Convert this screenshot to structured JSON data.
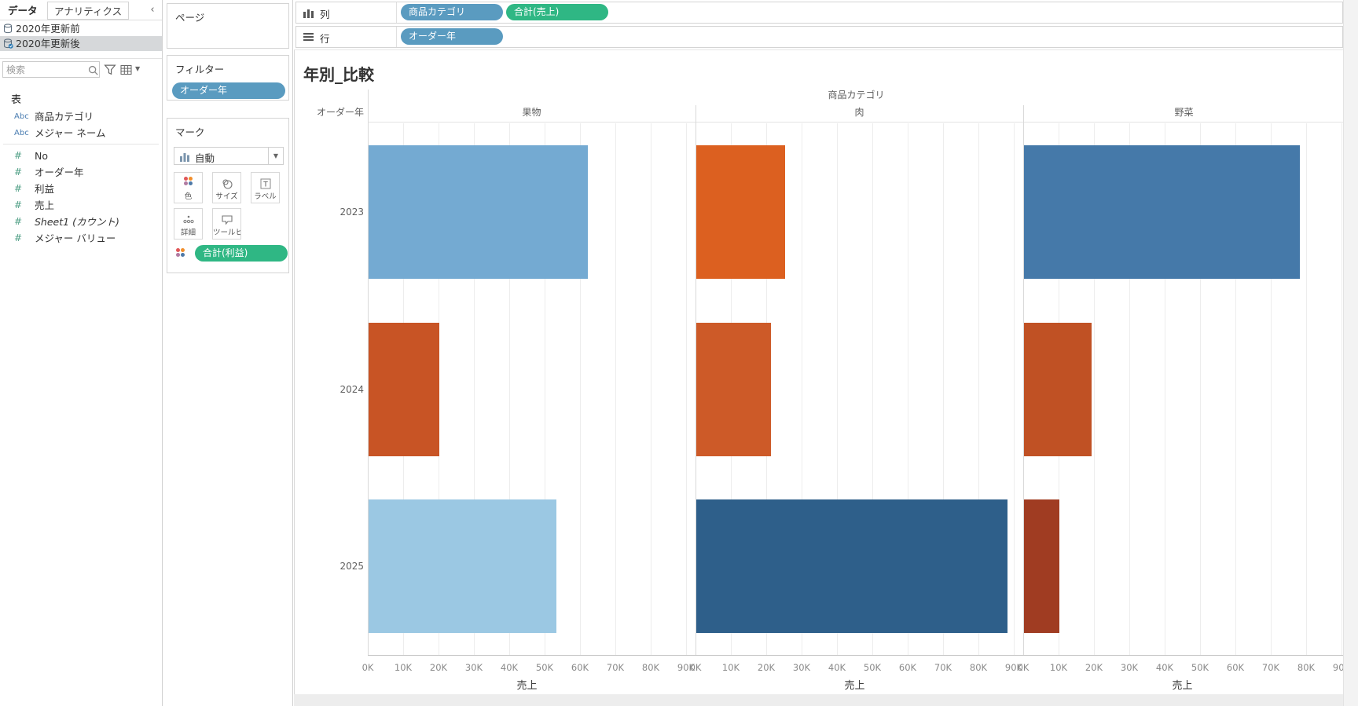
{
  "sidebar": {
    "tabs": [
      {
        "label": "データ",
        "active": true
      },
      {
        "label": "アナリティクス",
        "active": false
      }
    ],
    "collapse_label": "‹",
    "datasources": [
      {
        "label": "2020年更新前",
        "selected": false
      },
      {
        "label": "2020年更新後",
        "selected": true
      }
    ],
    "search": {
      "placeholder": "検索"
    },
    "fields_header": "表",
    "fields": [
      {
        "icon": "Abc",
        "type": "dimension",
        "label": "商品カテゴリ",
        "italic": false
      },
      {
        "icon": "Abc",
        "type": "dimension",
        "label": "メジャー ネーム",
        "italic": false
      },
      {
        "icon": "#",
        "type": "measure",
        "label": "No",
        "italic": false
      },
      {
        "icon": "#",
        "type": "measure",
        "label": "オーダー年",
        "italic": false
      },
      {
        "icon": "#",
        "type": "measure",
        "label": "利益",
        "italic": false
      },
      {
        "icon": "#",
        "type": "measure",
        "label": "売上",
        "italic": false
      },
      {
        "icon": "#",
        "type": "measure",
        "label": "Sheet1 (カウント)",
        "italic": true
      },
      {
        "icon": "#",
        "type": "measure",
        "label": "メジャー バリュー",
        "italic": false
      }
    ]
  },
  "cards": {
    "pages": {
      "title": "ページ"
    },
    "filters": {
      "title": "フィルター",
      "pills": [
        {
          "label": "オーダー年",
          "color": "blue"
        }
      ]
    },
    "marks": {
      "title": "マーク",
      "mark_type": "自動",
      "caret": "▼",
      "buttons": [
        {
          "label": "色"
        },
        {
          "label": "サイズ"
        },
        {
          "label": "ラベル"
        },
        {
          "label": "詳細"
        },
        {
          "label": "ツールヒ…"
        }
      ],
      "color_pill": {
        "label": "合計(利益)",
        "color": "green"
      }
    }
  },
  "shelves": {
    "columns": {
      "label": "列",
      "pills": [
        {
          "label": "商品カテゴリ",
          "color": "blue"
        },
        {
          "label": "合計(売上)",
          "color": "green"
        }
      ]
    },
    "rows": {
      "label": "行",
      "pills": [
        {
          "label": "オーダー年",
          "color": "blue"
        }
      ]
    }
  },
  "chart_data": {
    "type": "bar",
    "orientation": "horizontal",
    "title": "年別_比較",
    "column_header": "商品カテゴリ",
    "row_header": "オーダー年",
    "categories": [
      "果物",
      "肉",
      "野菜"
    ],
    "rows": [
      "2023",
      "2024",
      "2025"
    ],
    "xlabel": "売上",
    "x_ticks": [
      "0K",
      "10K",
      "20K",
      "30K",
      "40K",
      "50K",
      "60K",
      "70K",
      "80K",
      "90K"
    ],
    "xlim": [
      0,
      92500
    ],
    "grid": true,
    "color_encoding": "合計(利益)",
    "series": [
      {
        "row": "2023",
        "values": [
          62000,
          25000,
          78000
        ],
        "colors": [
          "#74aad2",
          "#dc6020",
          "#4579a9"
        ]
      },
      {
        "row": "2024",
        "values": [
          20000,
          21000,
          19000
        ],
        "colors": [
          "#c85425",
          "#cd5a28",
          "#c05124"
        ]
      },
      {
        "row": "2025",
        "values": [
          53000,
          88000,
          10000
        ],
        "colors": [
          "#9bc8e3",
          "#2e5f8a",
          "#a03c22"
        ]
      }
    ]
  },
  "colors": {
    "pill_blue": "#5a9bc0",
    "pill_green": "#2fb784",
    "color_dots": [
      "#e15759",
      "#f28e2b",
      "#b07aa1",
      "#4e79a7"
    ]
  }
}
